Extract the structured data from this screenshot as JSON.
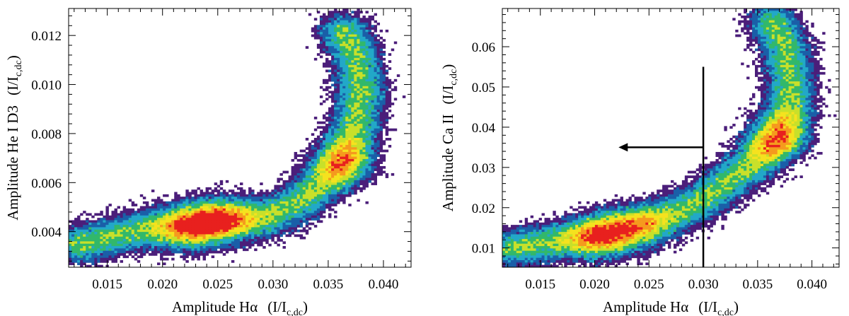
{
  "chart_data": [
    {
      "type": "heatmap",
      "xlabel": "Amplitude Hα",
      "xlabel_unit": {
        "open": "(I/I",
        "sub": "c,dc",
        "close": ")"
      },
      "ylabel": "Amplitude He I D3",
      "ylabel_unit": {
        "open": "(I/I",
        "sub": "c,dc",
        "close": ")"
      },
      "xlim": [
        0.0115,
        0.0425
      ],
      "ylim": [
        0.00255,
        0.0131
      ],
      "xticks": [
        0.015,
        0.02,
        0.025,
        0.03,
        0.035,
        0.04
      ],
      "xtick_labels": [
        "0.015",
        "0.020",
        "0.025",
        "0.030",
        "0.035",
        "0.040"
      ],
      "yticks": [
        0.004,
        0.006,
        0.008,
        0.01,
        0.012
      ],
      "ytick_labels": [
        "0.004",
        "0.006",
        "0.008",
        "0.010",
        "0.012"
      ],
      "colormap": [
        "#4b1e7a",
        "#1a5fa8",
        "#22a8c8",
        "#32b86a",
        "#c8e02a",
        "#f5e21e",
        "#f59a1e",
        "#e8201e"
      ],
      "density_model": {
        "spine": [
          [
            0.0125,
            0.0035
          ],
          [
            0.0155,
            0.0038
          ],
          [
            0.0185,
            0.0041
          ],
          [
            0.0215,
            0.0042
          ],
          [
            0.0245,
            0.0044
          ],
          [
            0.027,
            0.0045
          ],
          [
            0.0295,
            0.0046
          ],
          [
            0.032,
            0.0051
          ],
          [
            0.0345,
            0.006
          ],
          [
            0.0365,
            0.0071
          ],
          [
            0.0375,
            0.0084
          ],
          [
            0.038,
            0.0098
          ],
          [
            0.0375,
            0.0112
          ],
          [
            0.0365,
            0.0121
          ]
        ],
        "peaks": [
          {
            "x": 0.0225,
            "y": 0.0042,
            "strength": 1.0
          },
          {
            "x": 0.0255,
            "y": 0.0045,
            "strength": 0.95
          },
          {
            "x": 0.0365,
            "y": 0.0068,
            "strength": 0.85
          }
        ]
      }
    },
    {
      "type": "heatmap",
      "xlabel": "Amplitude Hα",
      "xlabel_unit": {
        "open": "(I/I",
        "sub": "c,dc",
        "close": ")"
      },
      "ylabel": "Amplitude Ca II",
      "ylabel_unit": {
        "open": "(I/I",
        "sub": "c,dc",
        "close": ")"
      },
      "xlim": [
        0.0115,
        0.0425
      ],
      "ylim": [
        0.0052,
        0.0695
      ],
      "xticks": [
        0.015,
        0.02,
        0.025,
        0.03,
        0.035,
        0.04
      ],
      "xtick_labels": [
        "0.015",
        "0.020",
        "0.025",
        "0.030",
        "0.035",
        "0.040"
      ],
      "yticks": [
        0.01,
        0.02,
        0.03,
        0.04,
        0.05,
        0.06
      ],
      "ytick_labels": [
        "0.01",
        "0.02",
        "0.03",
        "0.04",
        "0.05",
        "0.06"
      ],
      "colormap": [
        "#4b1e7a",
        "#1a5fa8",
        "#22a8c8",
        "#32b86a",
        "#c8e02a",
        "#f5e21e",
        "#f59a1e",
        "#e8201e"
      ],
      "density_model": {
        "spine": [
          [
            0.0125,
            0.01
          ],
          [
            0.0155,
            0.0112
          ],
          [
            0.0185,
            0.0125
          ],
          [
            0.0215,
            0.014
          ],
          [
            0.0245,
            0.016
          ],
          [
            0.0275,
            0.0185
          ],
          [
            0.03,
            0.022
          ],
          [
            0.0325,
            0.027
          ],
          [
            0.035,
            0.032
          ],
          [
            0.037,
            0.037
          ],
          [
            0.038,
            0.044
          ],
          [
            0.038,
            0.052
          ],
          [
            0.0375,
            0.06
          ],
          [
            0.0365,
            0.066
          ]
        ],
        "peaks": [
          {
            "x": 0.0205,
            "y": 0.0125,
            "strength": 1.0
          },
          {
            "x": 0.024,
            "y": 0.015,
            "strength": 0.7
          },
          {
            "x": 0.0365,
            "y": 0.0375,
            "strength": 0.95
          }
        ]
      },
      "annotations": {
        "vertical_line_x": 0.03,
        "vertical_line_y": [
          0.0052,
          0.055
        ],
        "arrow": {
          "from": [
            0.03,
            0.035
          ],
          "to": [
            0.0222,
            0.035
          ]
        }
      }
    }
  ]
}
